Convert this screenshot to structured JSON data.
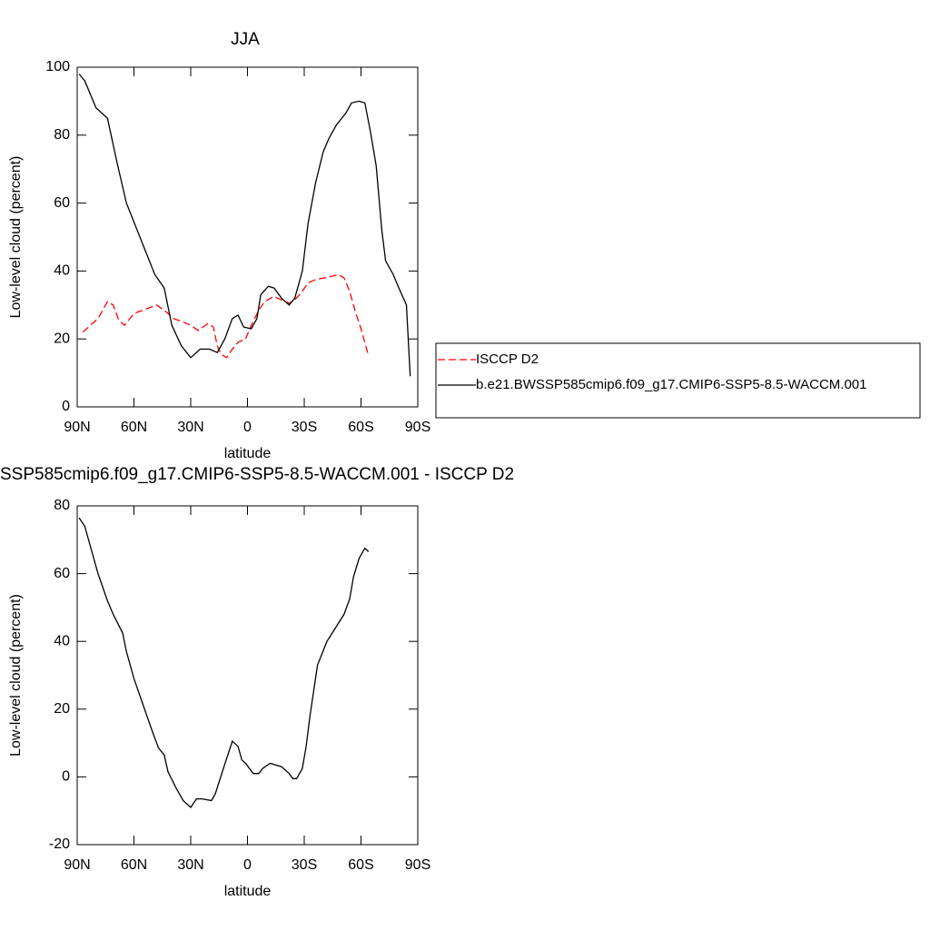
{
  "chart_data": [
    {
      "type": "line",
      "title": "JJA",
      "xlabel": "latitude",
      "ylabel": "Low-level cloud (percent)",
      "xlim": [
        90,
        -90
      ],
      "xticks": [
        {
          "value": 90,
          "label": "90N"
        },
        {
          "value": 60,
          "label": "60N"
        },
        {
          "value": 30,
          "label": "30N"
        },
        0,
        {
          "value": -30,
          "label": "30S"
        },
        {
          "value": -60,
          "label": "60S"
        },
        {
          "value": -90,
          "label": "90S"
        }
      ],
      "ylim": [
        0,
        100
      ],
      "yticks": [
        0,
        20,
        40,
        60,
        80,
        100
      ],
      "legend": "right",
      "series": [
        {
          "name": "ISCCP D2",
          "color": "#ff0000",
          "line_style": "dashed",
          "x": [
            87,
            83,
            79,
            74,
            71,
            68,
            65,
            60,
            55,
            48,
            43,
            39,
            34,
            30,
            26,
            21,
            18,
            16,
            14,
            11,
            8,
            5,
            1,
            -2,
            -6,
            -9,
            -14,
            -18,
            -22,
            -25,
            -29,
            -32,
            -36,
            -41,
            -45,
            -48,
            -51,
            -54,
            -57,
            -60,
            -64
          ],
          "values": [
            22,
            24,
            26,
            31,
            30,
            25.5,
            24,
            27.5,
            28.5,
            30,
            28,
            26,
            25,
            24,
            22.5,
            24.5,
            23.5,
            18,
            15.5,
            14.5,
            17,
            19,
            20,
            24,
            28.5,
            31,
            32.5,
            31.5,
            30.5,
            31.5,
            34,
            36.5,
            37.5,
            38,
            38.5,
            39,
            38,
            34,
            28,
            23,
            15
          ]
        },
        {
          "name": "b.e21.BWSSP585cmip6.f09_g17.CMIP6-SSP5-8.5-WACCM.001",
          "color": "#000000",
          "line_style": "solid",
          "x": [
            89,
            86,
            80,
            74,
            69,
            64,
            59,
            54,
            49,
            44,
            40,
            35,
            30,
            25,
            20,
            16,
            12,
            8,
            5,
            2,
            -2,
            -5,
            -7,
            -11,
            -14,
            -18,
            -22,
            -25,
            -29,
            -32,
            -36,
            -40,
            -43,
            -47,
            -52,
            -55,
            -59,
            -62,
            -65,
            -68,
            -71,
            -73,
            -77,
            -80,
            -84,
            -86
          ],
          "values": [
            98,
            96,
            88,
            85,
            72,
            60,
            53,
            46,
            39,
            35,
            24,
            18,
            14.5,
            17,
            17,
            16,
            20,
            26,
            27,
            23.5,
            23,
            26,
            33,
            35.5,
            35,
            32,
            30,
            32,
            40,
            54,
            66,
            75,
            79,
            83,
            86.5,
            89.5,
            90,
            89.5,
            81,
            71,
            52,
            43,
            39,
            35,
            30,
            9
          ]
        }
      ]
    },
    {
      "type": "line",
      "title": "SSP585cmip6.f09_g17.CMIP6-SSP5-8.5-WACCM.001 - ISCCP D2",
      "xlabel": "latitude",
      "ylabel": "Low-level cloud (percent)",
      "xlim": [
        90,
        -90
      ],
      "xticks": [
        {
          "value": 90,
          "label": "90N"
        },
        {
          "value": 60,
          "label": "60N"
        },
        {
          "value": 30,
          "label": "30N"
        },
        0,
        {
          "value": -30,
          "label": "30S"
        },
        {
          "value": -60,
          "label": "60S"
        },
        {
          "value": -90,
          "label": "90S"
        }
      ],
      "ylim": [
        -20,
        80
      ],
      "yticks": [
        -20,
        0,
        20,
        40,
        60,
        80
      ],
      "series": [
        {
          "color": "#000000",
          "line_style": "solid",
          "x": [
            89,
            86,
            83,
            79,
            74,
            71,
            66,
            64,
            60,
            55,
            50,
            47,
            44,
            42,
            38,
            34,
            30,
            27,
            24,
            19,
            17,
            13,
            8,
            5,
            3,
            1,
            -3,
            -6,
            -8,
            -12,
            -18,
            -22,
            -24,
            -26,
            -29,
            -31,
            -33,
            -37,
            -42,
            -46,
            -51,
            -54,
            -56,
            -59,
            -62,
            -64
          ],
          "values": [
            76.5,
            74,
            68,
            60,
            52,
            48,
            42.5,
            37,
            29,
            21,
            13,
            8.5,
            6.5,
            1.5,
            -3,
            -7,
            -9,
            -6.5,
            -6.5,
            -7,
            -5,
            2,
            10.5,
            9,
            5,
            4,
            1,
            1,
            2.5,
            4,
            3,
            1,
            -0.5,
            -0.5,
            2.5,
            9,
            18,
            33,
            40,
            43.5,
            48,
            52.5,
            59,
            64.5,
            67.5,
            66.5
          ]
        }
      ]
    }
  ]
}
